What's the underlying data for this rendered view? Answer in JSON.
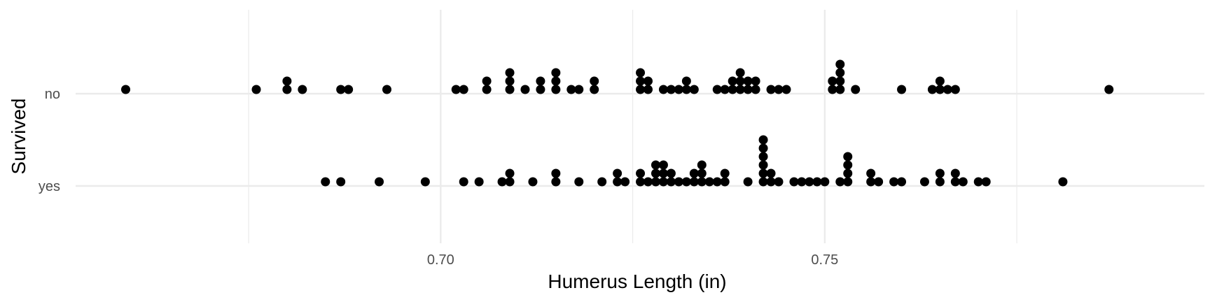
{
  "chart_data": {
    "type": "scatter",
    "subtype": "dotplot",
    "title": "",
    "xlabel": "Humerus Length (in)",
    "ylabel": "Survived",
    "xlim": [
      0.659,
      0.792
    ],
    "x_ticks": [
      0.7,
      0.75
    ],
    "x_tick_labels": [
      "0.70",
      "0.75"
    ],
    "x_minor_ticks": [
      0.675,
      0.725,
      0.775
    ],
    "categories": [
      "no",
      "yes"
    ],
    "grid": true,
    "point_color": "#000000",
    "grid_color": "#ebebeb",
    "series": [
      {
        "category": "no",
        "stacks": [
          {
            "x": 0.659,
            "count": 1
          },
          {
            "x": 0.676,
            "count": 1
          },
          {
            "x": 0.68,
            "count": 2
          },
          {
            "x": 0.682,
            "count": 1
          },
          {
            "x": 0.687,
            "count": 1
          },
          {
            "x": 0.688,
            "count": 1
          },
          {
            "x": 0.693,
            "count": 1
          },
          {
            "x": 0.702,
            "count": 1
          },
          {
            "x": 0.703,
            "count": 1
          },
          {
            "x": 0.706,
            "count": 2
          },
          {
            "x": 0.709,
            "count": 3
          },
          {
            "x": 0.711,
            "count": 1
          },
          {
            "x": 0.713,
            "count": 2
          },
          {
            "x": 0.715,
            "count": 3
          },
          {
            "x": 0.717,
            "count": 1
          },
          {
            "x": 0.718,
            "count": 1
          },
          {
            "x": 0.72,
            "count": 2
          },
          {
            "x": 0.726,
            "count": 3
          },
          {
            "x": 0.727,
            "count": 2
          },
          {
            "x": 0.729,
            "count": 1
          },
          {
            "x": 0.73,
            "count": 1
          },
          {
            "x": 0.731,
            "count": 1
          },
          {
            "x": 0.732,
            "count": 2
          },
          {
            "x": 0.733,
            "count": 1
          },
          {
            "x": 0.736,
            "count": 1
          },
          {
            "x": 0.737,
            "count": 1
          },
          {
            "x": 0.738,
            "count": 2
          },
          {
            "x": 0.739,
            "count": 3
          },
          {
            "x": 0.74,
            "count": 2
          },
          {
            "x": 0.741,
            "count": 2
          },
          {
            "x": 0.743,
            "count": 1
          },
          {
            "x": 0.744,
            "count": 1
          },
          {
            "x": 0.745,
            "count": 1
          },
          {
            "x": 0.751,
            "count": 2
          },
          {
            "x": 0.752,
            "count": 4
          },
          {
            "x": 0.754,
            "count": 1
          },
          {
            "x": 0.76,
            "count": 1
          },
          {
            "x": 0.764,
            "count": 1
          },
          {
            "x": 0.765,
            "count": 2
          },
          {
            "x": 0.766,
            "count": 1
          },
          {
            "x": 0.767,
            "count": 1
          },
          {
            "x": 0.787,
            "count": 1
          }
        ]
      },
      {
        "category": "yes",
        "stacks": [
          {
            "x": 0.685,
            "count": 1
          },
          {
            "x": 0.687,
            "count": 1
          },
          {
            "x": 0.692,
            "count": 1
          },
          {
            "x": 0.698,
            "count": 1
          },
          {
            "x": 0.703,
            "count": 1
          },
          {
            "x": 0.705,
            "count": 1
          },
          {
            "x": 0.708,
            "count": 1
          },
          {
            "x": 0.709,
            "count": 2
          },
          {
            "x": 0.712,
            "count": 1
          },
          {
            "x": 0.715,
            "count": 2
          },
          {
            "x": 0.718,
            "count": 1
          },
          {
            "x": 0.721,
            "count": 1
          },
          {
            "x": 0.723,
            "count": 2
          },
          {
            "x": 0.724,
            "count": 1
          },
          {
            "x": 0.726,
            "count": 2
          },
          {
            "x": 0.727,
            "count": 1
          },
          {
            "x": 0.728,
            "count": 3
          },
          {
            "x": 0.729,
            "count": 3
          },
          {
            "x": 0.73,
            "count": 2
          },
          {
            "x": 0.731,
            "count": 1
          },
          {
            "x": 0.732,
            "count": 1
          },
          {
            "x": 0.733,
            "count": 2
          },
          {
            "x": 0.734,
            "count": 3
          },
          {
            "x": 0.735,
            "count": 1
          },
          {
            "x": 0.736,
            "count": 1
          },
          {
            "x": 0.737,
            "count": 2
          },
          {
            "x": 0.74,
            "count": 1
          },
          {
            "x": 0.742,
            "count": 6
          },
          {
            "x": 0.743,
            "count": 2
          },
          {
            "x": 0.744,
            "count": 1
          },
          {
            "x": 0.746,
            "count": 1
          },
          {
            "x": 0.747,
            "count": 1
          },
          {
            "x": 0.748,
            "count": 1
          },
          {
            "x": 0.749,
            "count": 1
          },
          {
            "x": 0.75,
            "count": 1
          },
          {
            "x": 0.752,
            "count": 1
          },
          {
            "x": 0.753,
            "count": 4
          },
          {
            "x": 0.756,
            "count": 2
          },
          {
            "x": 0.757,
            "count": 1
          },
          {
            "x": 0.759,
            "count": 1
          },
          {
            "x": 0.76,
            "count": 1
          },
          {
            "x": 0.763,
            "count": 1
          },
          {
            "x": 0.765,
            "count": 2
          },
          {
            "x": 0.767,
            "count": 2
          },
          {
            "x": 0.768,
            "count": 1
          },
          {
            "x": 0.77,
            "count": 1
          },
          {
            "x": 0.771,
            "count": 1
          },
          {
            "x": 0.781,
            "count": 1
          }
        ]
      }
    ]
  }
}
